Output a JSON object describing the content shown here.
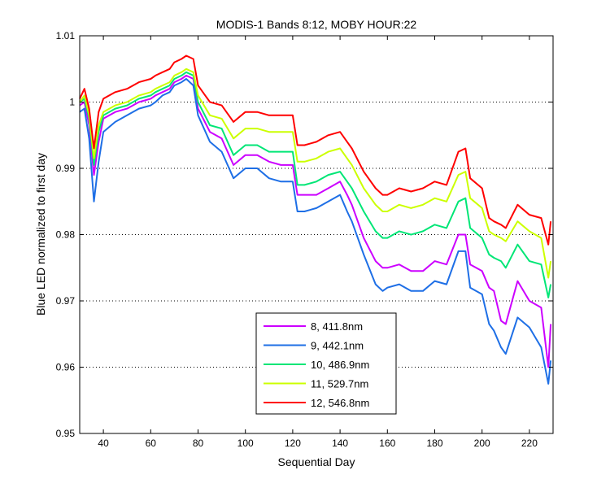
{
  "chart_data": {
    "type": "line",
    "title": "MODIS-1 Bands 8:12, MOBY HOUR:22",
    "xlabel": "Sequential Day",
    "ylabel": "Blue LED normalized to first day",
    "xlim": [
      30,
      230
    ],
    "ylim": [
      0.95,
      1.01
    ],
    "xticks": [
      40,
      60,
      80,
      100,
      120,
      140,
      160,
      180,
      200,
      220
    ],
    "yticks": [
      0.95,
      0.96,
      0.97,
      0.98,
      0.99,
      1,
      1.01
    ],
    "xtick_labels": [
      "40",
      "60",
      "80",
      "100",
      "120",
      "140",
      "160",
      "180",
      "200",
      "220"
    ],
    "ytick_labels": [
      "0.95",
      "0.96",
      "0.97",
      "0.98",
      "0.99",
      "1",
      "1.01"
    ],
    "grid": "horizontal dotted",
    "legend_position": "bottom-center",
    "x": [
      30,
      32,
      34,
      36,
      38,
      40,
      45,
      50,
      55,
      60,
      62,
      65,
      68,
      70,
      73,
      75,
      78,
      80,
      85,
      90,
      95,
      100,
      105,
      110,
      115,
      120,
      122,
      125,
      130,
      135,
      140,
      143,
      145,
      150,
      155,
      158,
      160,
      165,
      170,
      175,
      180,
      185,
      190,
      193,
      195,
      200,
      203,
      205,
      208,
      210,
      215,
      220,
      225,
      228,
      229
    ],
    "series": [
      {
        "name": "8, 411.8nm",
        "color": "#cc00ff",
        "values": [
          0.9995,
          1.0,
          0.9965,
          0.989,
          0.994,
          0.9975,
          0.9985,
          0.999,
          1.0,
          1.0005,
          1.001,
          1.0015,
          1.002,
          1.003,
          1.0035,
          1.004,
          1.0035,
          0.999,
          0.9955,
          0.9945,
          0.9905,
          0.992,
          0.992,
          0.991,
          0.9905,
          0.9905,
          0.986,
          0.986,
          0.986,
          0.987,
          0.988,
          0.986,
          0.9845,
          0.9795,
          0.976,
          0.975,
          0.975,
          0.9755,
          0.9745,
          0.9745,
          0.976,
          0.9755,
          0.98,
          0.98,
          0.9755,
          0.9745,
          0.972,
          0.9715,
          0.967,
          0.9665,
          0.973,
          0.97,
          0.969,
          0.96,
          0.9665
        ]
      },
      {
        "name": "9, 442.1nm",
        "color": "#1e6fe6",
        "values": [
          0.9985,
          0.999,
          0.9945,
          0.985,
          0.991,
          0.9955,
          0.997,
          0.998,
          0.999,
          0.9995,
          1.0,
          1.001,
          1.0015,
          1.0025,
          1.003,
          1.0035,
          1.0025,
          0.998,
          0.994,
          0.9925,
          0.9885,
          0.99,
          0.99,
          0.9885,
          0.988,
          0.988,
          0.9835,
          0.9835,
          0.984,
          0.985,
          0.986,
          0.9835,
          0.982,
          0.977,
          0.9725,
          0.9715,
          0.972,
          0.9725,
          0.9715,
          0.9715,
          0.973,
          0.9725,
          0.9775,
          0.9775,
          0.972,
          0.971,
          0.9665,
          0.9655,
          0.963,
          0.962,
          0.9675,
          0.966,
          0.963,
          0.9575,
          0.961
        ]
      },
      {
        "name": "10, 486.9nm",
        "color": "#00e676",
        "values": [
          1.0,
          1.0005,
          0.9975,
          0.9905,
          0.9955,
          0.998,
          0.999,
          0.9995,
          1.0005,
          1.001,
          1.0015,
          1.002,
          1.0025,
          1.0035,
          1.004,
          1.0045,
          1.004,
          1.0,
          0.9965,
          0.996,
          0.992,
          0.9935,
          0.9935,
          0.9925,
          0.9925,
          0.9925,
          0.9875,
          0.9875,
          0.988,
          0.989,
          0.9895,
          0.988,
          0.987,
          0.9835,
          0.9805,
          0.9795,
          0.9795,
          0.9805,
          0.98,
          0.9805,
          0.9815,
          0.981,
          0.985,
          0.9855,
          0.981,
          0.9795,
          0.977,
          0.9765,
          0.976,
          0.975,
          0.9785,
          0.976,
          0.9755,
          0.9705,
          0.9725
        ]
      },
      {
        "name": "11, 529.7nm",
        "color": "#ccff00",
        "values": [
          1.0,
          1.001,
          0.998,
          0.9915,
          0.9965,
          0.9985,
          0.9995,
          1.0,
          1.001,
          1.0015,
          1.002,
          1.0025,
          1.003,
          1.004,
          1.0045,
          1.005,
          1.0045,
          1.001,
          0.998,
          0.9975,
          0.9945,
          0.996,
          0.996,
          0.9955,
          0.9955,
          0.9955,
          0.991,
          0.991,
          0.9915,
          0.9925,
          0.993,
          0.9915,
          0.9905,
          0.987,
          0.9845,
          0.9835,
          0.9835,
          0.9845,
          0.984,
          0.9845,
          0.9855,
          0.985,
          0.989,
          0.9895,
          0.9855,
          0.984,
          0.9805,
          0.98,
          0.9795,
          0.979,
          0.982,
          0.9805,
          0.9795,
          0.9735,
          0.976
        ]
      },
      {
        "name": "12, 546.8nm",
        "color": "#ff0000",
        "values": [
          1.0005,
          1.002,
          0.999,
          0.993,
          0.9985,
          1.0005,
          1.0015,
          1.002,
          1.003,
          1.0035,
          1.004,
          1.0045,
          1.005,
          1.006,
          1.0065,
          1.007,
          1.0065,
          1.0025,
          1.0,
          0.9995,
          0.997,
          0.9985,
          0.9985,
          0.998,
          0.998,
          0.998,
          0.9935,
          0.9935,
          0.994,
          0.995,
          0.9955,
          0.994,
          0.993,
          0.9895,
          0.987,
          0.986,
          0.986,
          0.987,
          0.9865,
          0.987,
          0.988,
          0.9875,
          0.9925,
          0.993,
          0.9885,
          0.987,
          0.9825,
          0.982,
          0.9815,
          0.981,
          0.9845,
          0.983,
          0.9825,
          0.9785,
          0.982
        ]
      }
    ]
  }
}
